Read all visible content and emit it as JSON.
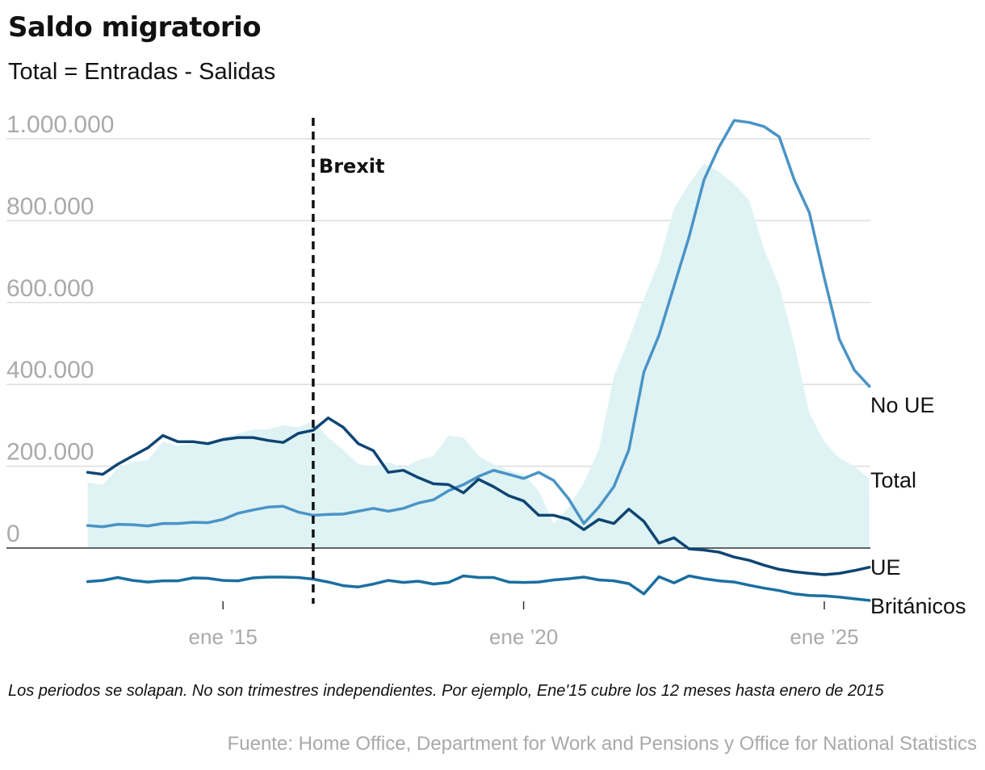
{
  "header": {
    "title": "Saldo migratorio",
    "subtitle": "Total = Entradas - Salidas"
  },
  "footer": {
    "note": "Los periodos se solapan. No son trimestres independientes. Por ejemplo, Ene'15 cubre los 12 meses hasta enero de 2015",
    "source": "Fuente: Home Office, Department for Work and Pensions y Office for National Statistics"
  },
  "colors": {
    "no_ue": "#4a94c6",
    "ue": "#0e4573",
    "britanicos": "#1a6fa0",
    "total_fill": "#dff3f4",
    "grid": "#dddddd",
    "zero_line": "#333333",
    "tick_label": "#aaaaaa"
  },
  "chart_data": {
    "type": "line",
    "title": "Saldo migratorio",
    "subtitle": "Total = Entradas - Salidas",
    "x_unit": "year",
    "xlim": [
      2012.5,
      2025.9
    ],
    "ylim": [
      -150000,
      1050000
    ],
    "y_ticks": [
      0,
      200000,
      400000,
      600000,
      800000,
      1000000
    ],
    "y_tick_labels": [
      "0",
      "200.000",
      "400.000",
      "600.000",
      "800.000",
      "1.000.000"
    ],
    "x_ticks": [
      2015,
      2020,
      2025
    ],
    "x_tick_labels": [
      "ene ’15",
      "ene ’20",
      "ene ’25"
    ],
    "grid": true,
    "legend": "labels at line ends (right)",
    "annotations": [
      {
        "label": "Brexit",
        "x": 2016.5,
        "style": "dashed vertical line"
      }
    ],
    "x": [
      2012.75,
      2013.0,
      2013.25,
      2013.5,
      2013.75,
      2014.0,
      2014.25,
      2014.5,
      2014.75,
      2015.0,
      2015.25,
      2015.5,
      2015.75,
      2016.0,
      2016.25,
      2016.5,
      2016.75,
      2017.0,
      2017.25,
      2017.5,
      2017.75,
      2018.0,
      2018.25,
      2018.5,
      2018.75,
      2019.0,
      2019.25,
      2019.5,
      2019.75,
      2020.0,
      2020.25,
      2020.5,
      2020.75,
      2021.0,
      2021.25,
      2021.5,
      2021.75,
      2022.0,
      2022.25,
      2022.5,
      2022.75,
      2023.0,
      2023.25,
      2023.5,
      2023.75,
      2024.0,
      2024.25,
      2024.5,
      2024.75,
      2025.0,
      2025.25,
      2025.5,
      2025.75
    ],
    "area": {
      "name": "Total",
      "values": [
        160000,
        155000,
        195000,
        210000,
        215000,
        260000,
        250000,
        255000,
        260000,
        270000,
        280000,
        290000,
        290000,
        300000,
        295000,
        310000,
        270000,
        240000,
        205000,
        200000,
        210000,
        195000,
        215000,
        225000,
        275000,
        270000,
        225000,
        205000,
        190000,
        180000,
        140000,
        60000,
        100000,
        160000,
        240000,
        420000,
        510000,
        610000,
        700000,
        830000,
        890000,
        940000,
        920000,
        890000,
        850000,
        730000,
        640000,
        500000,
        330000,
        260000,
        220000,
        200000,
        170000
      ]
    },
    "series": [
      {
        "name": "No UE",
        "values": [
          55000,
          52000,
          58000,
          57000,
          54000,
          60000,
          60000,
          63000,
          62000,
          70000,
          85000,
          93000,
          100000,
          102000,
          88000,
          80000,
          82000,
          83000,
          90000,
          97000,
          90000,
          97000,
          110000,
          118000,
          140000,
          155000,
          175000,
          190000,
          180000,
          170000,
          185000,
          165000,
          120000,
          60000,
          100000,
          150000,
          240000,
          430000,
          520000,
          640000,
          760000,
          900000,
          980000,
          1045000,
          1040000,
          1030000,
          1005000,
          900000,
          820000,
          660000,
          510000,
          435000,
          395000
        ]
      },
      {
        "name": "UE",
        "values": [
          185000,
          180000,
          205000,
          225000,
          245000,
          275000,
          260000,
          260000,
          255000,
          265000,
          270000,
          270000,
          263000,
          258000,
          280000,
          288000,
          318000,
          295000,
          255000,
          238000,
          185000,
          190000,
          172000,
          157000,
          155000,
          135000,
          168000,
          150000,
          128000,
          115000,
          80000,
          80000,
          70000,
          45000,
          70000,
          60000,
          95000,
          65000,
          12000,
          25000,
          -2000,
          -5000,
          -10000,
          -22000,
          -30000,
          -42000,
          -52000,
          -58000,
          -62000,
          -65000,
          -62000,
          -55000,
          -47000
        ]
      },
      {
        "name": "Británicos",
        "values": [
          -82000,
          -79000,
          -72000,
          -79000,
          -83000,
          -80000,
          -80000,
          -73000,
          -74000,
          -79000,
          -80000,
          -73000,
          -71000,
          -71000,
          -72000,
          -76000,
          -83000,
          -92000,
          -95000,
          -88000,
          -79000,
          -84000,
          -81000,
          -88000,
          -84000,
          -68000,
          -72000,
          -72000,
          -83000,
          -84000,
          -83000,
          -78000,
          -75000,
          -71000,
          -78000,
          -80000,
          -87000,
          -112000,
          -70000,
          -85000,
          -68000,
          -75000,
          -80000,
          -83000,
          -91000,
          -98000,
          -104000,
          -112000,
          -116000,
          -117000,
          -120000,
          -124000,
          -128000
        ]
      }
    ]
  }
}
